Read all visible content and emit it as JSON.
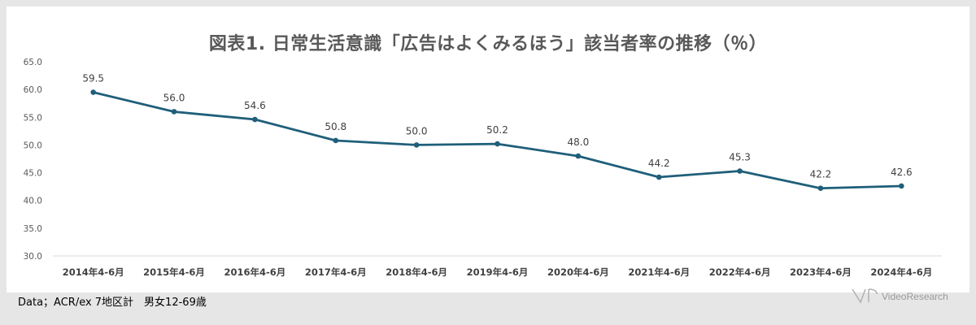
{
  "chart_data": {
    "type": "line",
    "title": "図表1. 日常生活意識「広告はよくみるほう」該当者率の推移（％）",
    "categories": [
      "2014年4-6月",
      "2015年4-6月",
      "2016年4-6月",
      "2017年4-6月",
      "2018年4-6月",
      "2019年4-6月",
      "2020年4-6月",
      "2021年4-6月",
      "2022年4-6月",
      "2023年4-6月",
      "2024年4-6月"
    ],
    "values": [
      59.5,
      56.0,
      54.6,
      50.8,
      50.0,
      50.2,
      48.0,
      44.2,
      45.3,
      42.2,
      42.6
    ],
    "value_labels": [
      "59.5",
      "56.0",
      "54.6",
      "50.8",
      "50.0",
      "50.2",
      "48.0",
      "44.2",
      "45.3",
      "42.2",
      "42.6"
    ],
    "ylim": [
      30,
      65
    ],
    "yticks": [
      "30.0",
      "35.0",
      "40.0",
      "45.0",
      "50.0",
      "55.0",
      "60.0",
      "65.0"
    ],
    "xlabel": "",
    "ylabel": "",
    "grid": false,
    "legend": "none",
    "line_color": "#1f5f7a"
  },
  "footer": {
    "source": "Data；ACR/ex 7地区計　男女12-69歳",
    "logo_text": "VideoResearch"
  }
}
